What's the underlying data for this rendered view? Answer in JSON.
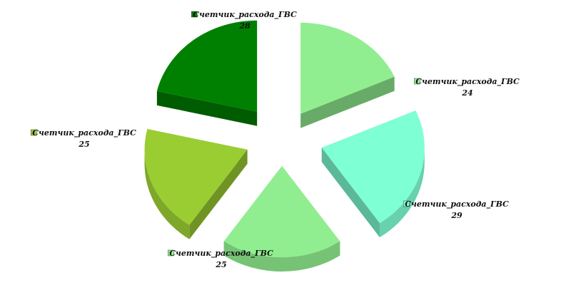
{
  "chart_data": {
    "type": "pie",
    "title": "",
    "slices": [
      {
        "name": "Счетчик_расхода_ГВС",
        "value": 24,
        "color": "#90ee90",
        "explode": "right"
      },
      {
        "name": "Счетчик_расхода_ГВС",
        "value": 29,
        "color": "#7fffd4",
        "explode": "bottom-right"
      },
      {
        "name": "Счетчик_расхода_ГВС",
        "value": 25,
        "color": "#90ee90",
        "explode": "bottom-left"
      },
      {
        "name": "Счетчик_расхода_ГВС",
        "value": 25,
        "color": "#9acd32",
        "explode": "left"
      },
      {
        "name": "Счетчик_расхода_ГВС",
        "value": 28,
        "color": "#008000",
        "explode": "top"
      }
    ],
    "legend": "none",
    "style": "3d-exploded"
  }
}
